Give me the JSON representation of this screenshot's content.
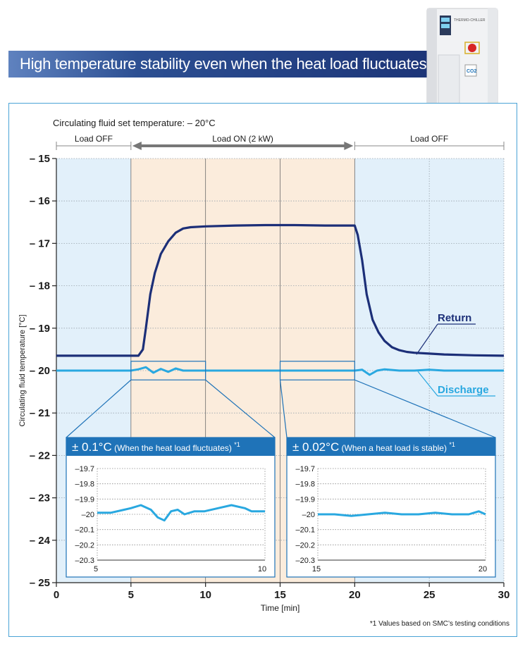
{
  "header": {
    "title": "High temperature stability even when the heat load fluctuates"
  },
  "product": {
    "label_top": "THERMO-CHILLER",
    "label_logo": "CO2"
  },
  "colors": {
    "banner": "#2c4f92",
    "return_line": "#1c2f78",
    "discharge_line": "#29a8e0",
    "load_off_bg": "#e2f0fa",
    "load_on_bg": "#fbecdc",
    "inset_header": "#1f73b8"
  },
  "chart_data": [
    {
      "type": "line",
      "subtitle": "Circulating fluid set temperature: – 20°C",
      "xlabel": "Time [min]",
      "ylabel": "Circulating fluid temperature [°C]",
      "xlim": [
        0,
        30
      ],
      "ylim": [
        -25,
        -15
      ],
      "x_ticks": [
        0,
        5,
        10,
        15,
        20,
        25,
        30
      ],
      "x_tick_labels": [
        "0",
        "5",
        "10",
        "15",
        "20",
        "25",
        "30"
      ],
      "y_ticks": [
        -15,
        -16,
        -17,
        -18,
        -19,
        -20,
        -21,
        -22,
        -23,
        -24,
        -25
      ],
      "y_tick_labels": [
        "– 15",
        "– 16",
        "– 17",
        "– 18",
        "– 19",
        "– 20",
        "– 21",
        "– 22",
        "– 23",
        "– 24",
        "– 25"
      ],
      "phases": [
        {
          "label": "Load OFF",
          "start": 0,
          "end": 5
        },
        {
          "label": "Load ON (2 kW)",
          "start": 5,
          "end": 20
        },
        {
          "label": "Load OFF",
          "start": 20,
          "end": 30
        }
      ],
      "series": [
        {
          "name": "Return",
          "x": [
            0,
            2,
            4,
            5.5,
            5.8,
            6.0,
            6.3,
            6.6,
            7.0,
            7.5,
            8.0,
            8.5,
            9.0,
            10,
            12,
            14,
            16,
            18,
            20,
            20.2,
            20.5,
            20.8,
            21.2,
            21.6,
            22.0,
            22.5,
            23.0,
            23.5,
            24.0,
            25,
            26,
            28,
            30
          ],
          "y": [
            -19.65,
            -19.65,
            -19.65,
            -19.65,
            -19.5,
            -19.0,
            -18.2,
            -17.7,
            -17.25,
            -16.95,
            -16.75,
            -16.65,
            -16.62,
            -16.6,
            -16.58,
            -16.57,
            -16.57,
            -16.58,
            -16.58,
            -16.8,
            -17.4,
            -18.2,
            -18.8,
            -19.1,
            -19.3,
            -19.45,
            -19.52,
            -19.56,
            -19.58,
            -19.6,
            -19.62,
            -19.64,
            -19.65
          ]
        },
        {
          "name": "Discharge",
          "x": [
            0,
            2,
            4,
            5,
            5.5,
            6.0,
            6.5,
            7.0,
            7.5,
            8.0,
            8.5,
            9.0,
            10,
            12,
            14,
            16,
            18,
            20,
            20.5,
            21.0,
            21.5,
            22.0,
            23,
            24,
            25,
            26,
            28,
            30
          ],
          "y": [
            -20.0,
            -20.0,
            -20.0,
            -20.0,
            -19.97,
            -19.92,
            -20.05,
            -19.96,
            -20.03,
            -19.95,
            -20.0,
            -20.0,
            -20.0,
            -20.0,
            -20.0,
            -20.0,
            -20.0,
            -20.0,
            -19.98,
            -20.1,
            -20.0,
            -19.97,
            -20.0,
            -20.0,
            -19.98,
            -20.0,
            -20.0,
            -20.0
          ]
        }
      ]
    },
    {
      "type": "line",
      "title": "± 0.1°C",
      "title_note": "(When the heat load fluctuates)",
      "footnote_mark": "*1",
      "xlim": [
        5,
        10
      ],
      "ylim": [
        -20.3,
        -19.7
      ],
      "x_tick_labels": [
        "5",
        "10"
      ],
      "y_ticks": [
        -19.7,
        -19.8,
        -19.9,
        -20,
        -20.1,
        -20.2,
        -20.3
      ],
      "y_tick_labels": [
        "–19.7",
        "–19.8",
        "–19.9",
        "–20",
        "–20.1",
        "–20.2",
        "–20.3"
      ],
      "series": [
        {
          "name": "Discharge",
          "x": [
            5.0,
            5.4,
            5.8,
            6.0,
            6.3,
            6.6,
            6.8,
            7.0,
            7.2,
            7.4,
            7.6,
            7.9,
            8.2,
            8.6,
            9.0,
            9.4,
            9.6,
            9.8,
            10.0
          ],
          "y": [
            -19.99,
            -19.99,
            -19.97,
            -19.96,
            -19.94,
            -19.97,
            -20.02,
            -20.04,
            -19.98,
            -19.97,
            -20.0,
            -19.98,
            -19.98,
            -19.96,
            -19.94,
            -19.96,
            -19.98,
            -19.98,
            -19.98
          ]
        }
      ]
    },
    {
      "type": "line",
      "title": "± 0.02°C",
      "title_note": "(When a heat load is stable)",
      "footnote_mark": "*1",
      "xlim": [
        15,
        20
      ],
      "ylim": [
        -20.3,
        -19.7
      ],
      "x_tick_labels": [
        "15",
        "20"
      ],
      "y_ticks": [
        -19.7,
        -19.8,
        -19.9,
        -20,
        -20.1,
        -20.2,
        -20.3
      ],
      "y_tick_labels": [
        "–19.7",
        "–19.8",
        "–19.9",
        "–20",
        "–20.1",
        "–20.2",
        "–20.3"
      ],
      "series": [
        {
          "name": "Discharge",
          "x": [
            15.0,
            15.5,
            16.0,
            16.5,
            17.0,
            17.5,
            18.0,
            18.5,
            19.0,
            19.5,
            19.8,
            20.0
          ],
          "y": [
            -20.0,
            -20.0,
            -20.01,
            -20.0,
            -19.99,
            -20.0,
            -20.0,
            -19.99,
            -20.0,
            -20.0,
            -19.98,
            -20.0
          ]
        }
      ]
    }
  ],
  "footnote": "*1  Values based on SMC’s testing conditions"
}
